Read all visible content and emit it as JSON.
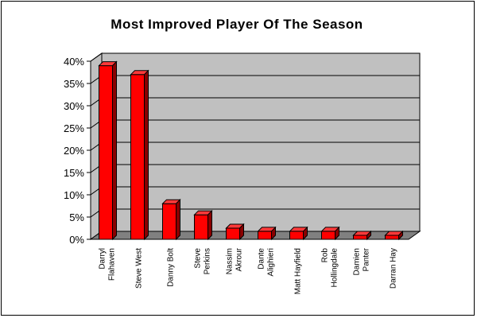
{
  "chart_data": {
    "type": "bar",
    "title": "Most Improved Player Of The Season",
    "categories": [
      [
        "Darryl",
        "Flahaven"
      ],
      [
        "Steve West"
      ],
      [
        "Danny Bolt"
      ],
      [
        "Steve",
        "Perkins"
      ],
      [
        "Nassim",
        "Akrour"
      ],
      [
        "Dante",
        "Alighieri"
      ],
      [
        "Matt Hayfield"
      ],
      [
        "Rob",
        "Hollingdale"
      ],
      [
        "Damien",
        "Panter"
      ],
      [
        "Darran Hay"
      ]
    ],
    "values": [
      39,
      37,
      8,
      5.5,
      2.5,
      1.8,
      1.8,
      1.8,
      0.9,
      0.9
    ],
    "ylim": [
      0,
      40
    ],
    "yticks": [
      "0%",
      "5%",
      "10%",
      "15%",
      "20%",
      "25%",
      "30%",
      "35%",
      "40%"
    ],
    "grid": true,
    "legend": "none",
    "colors": {
      "bar_front": "#ff0000",
      "bar_top": "#ff3a3a",
      "bar_side": "#8a0000",
      "wall": "#c0c0c0",
      "floor": "#808080",
      "grid": "#000000"
    }
  }
}
